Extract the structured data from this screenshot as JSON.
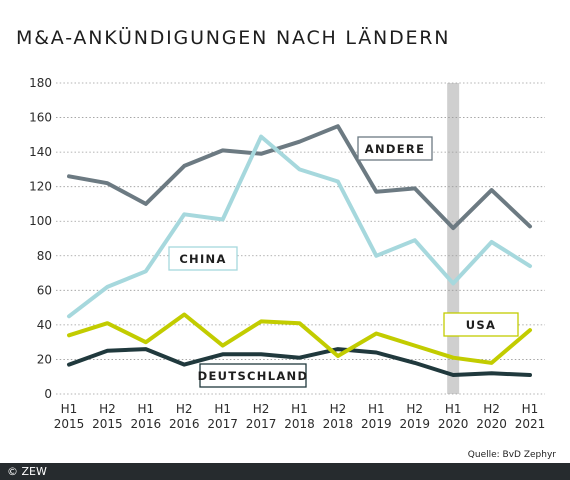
{
  "chart_data": {
    "type": "line",
    "title": "M&A-ANKÜNDIGUNGEN NACH LÄNDERN",
    "categories": [
      [
        "H1",
        "2015"
      ],
      [
        "H2",
        "2015"
      ],
      [
        "H1",
        "2016"
      ],
      [
        "H2",
        "2016"
      ],
      [
        "H1",
        "2017"
      ],
      [
        "H2",
        "2017"
      ],
      [
        "H1",
        "2018"
      ],
      [
        "H2",
        "2018"
      ],
      [
        "H1",
        "2019"
      ],
      [
        "H2",
        "2019"
      ],
      [
        "H1",
        "2020"
      ],
      [
        "H2",
        "2020"
      ],
      [
        "H1",
        "2021"
      ]
    ],
    "ylim": [
      0,
      180
    ],
    "yticks": [
      0,
      20,
      40,
      60,
      80,
      100,
      120,
      140,
      160,
      180
    ],
    "highlight_category_index": 10,
    "series": [
      {
        "name": "ANDERE",
        "color": "#6c7a82",
        "label_box_color": "#6c7a82",
        "values": [
          126,
          122,
          110,
          132,
          141,
          139,
          146,
          155,
          117,
          119,
          96,
          118,
          97
        ]
      },
      {
        "name": "CHINA",
        "color": "#a6d8dd",
        "label_box_color": "#a6d8dd",
        "values": [
          45,
          62,
          71,
          104,
          101,
          149,
          130,
          123,
          80,
          89,
          64,
          88,
          74
        ]
      },
      {
        "name": "USA",
        "color": "#c2cc00",
        "label_box_color": "#c2cc00",
        "values": [
          34,
          41,
          30,
          46,
          28,
          42,
          41,
          22,
          35,
          28,
          21,
          18,
          37
        ]
      },
      {
        "name": "DEUTSCHLAND",
        "color": "#20393d",
        "label_box_color": "#20393d",
        "values": [
          17,
          25,
          26,
          17,
          23,
          23,
          21,
          26,
          24,
          18,
          11,
          12,
          11
        ]
      }
    ],
    "grid": true
  },
  "source": "Quelle: BvD Zephyr",
  "copyright": "© ZEW"
}
